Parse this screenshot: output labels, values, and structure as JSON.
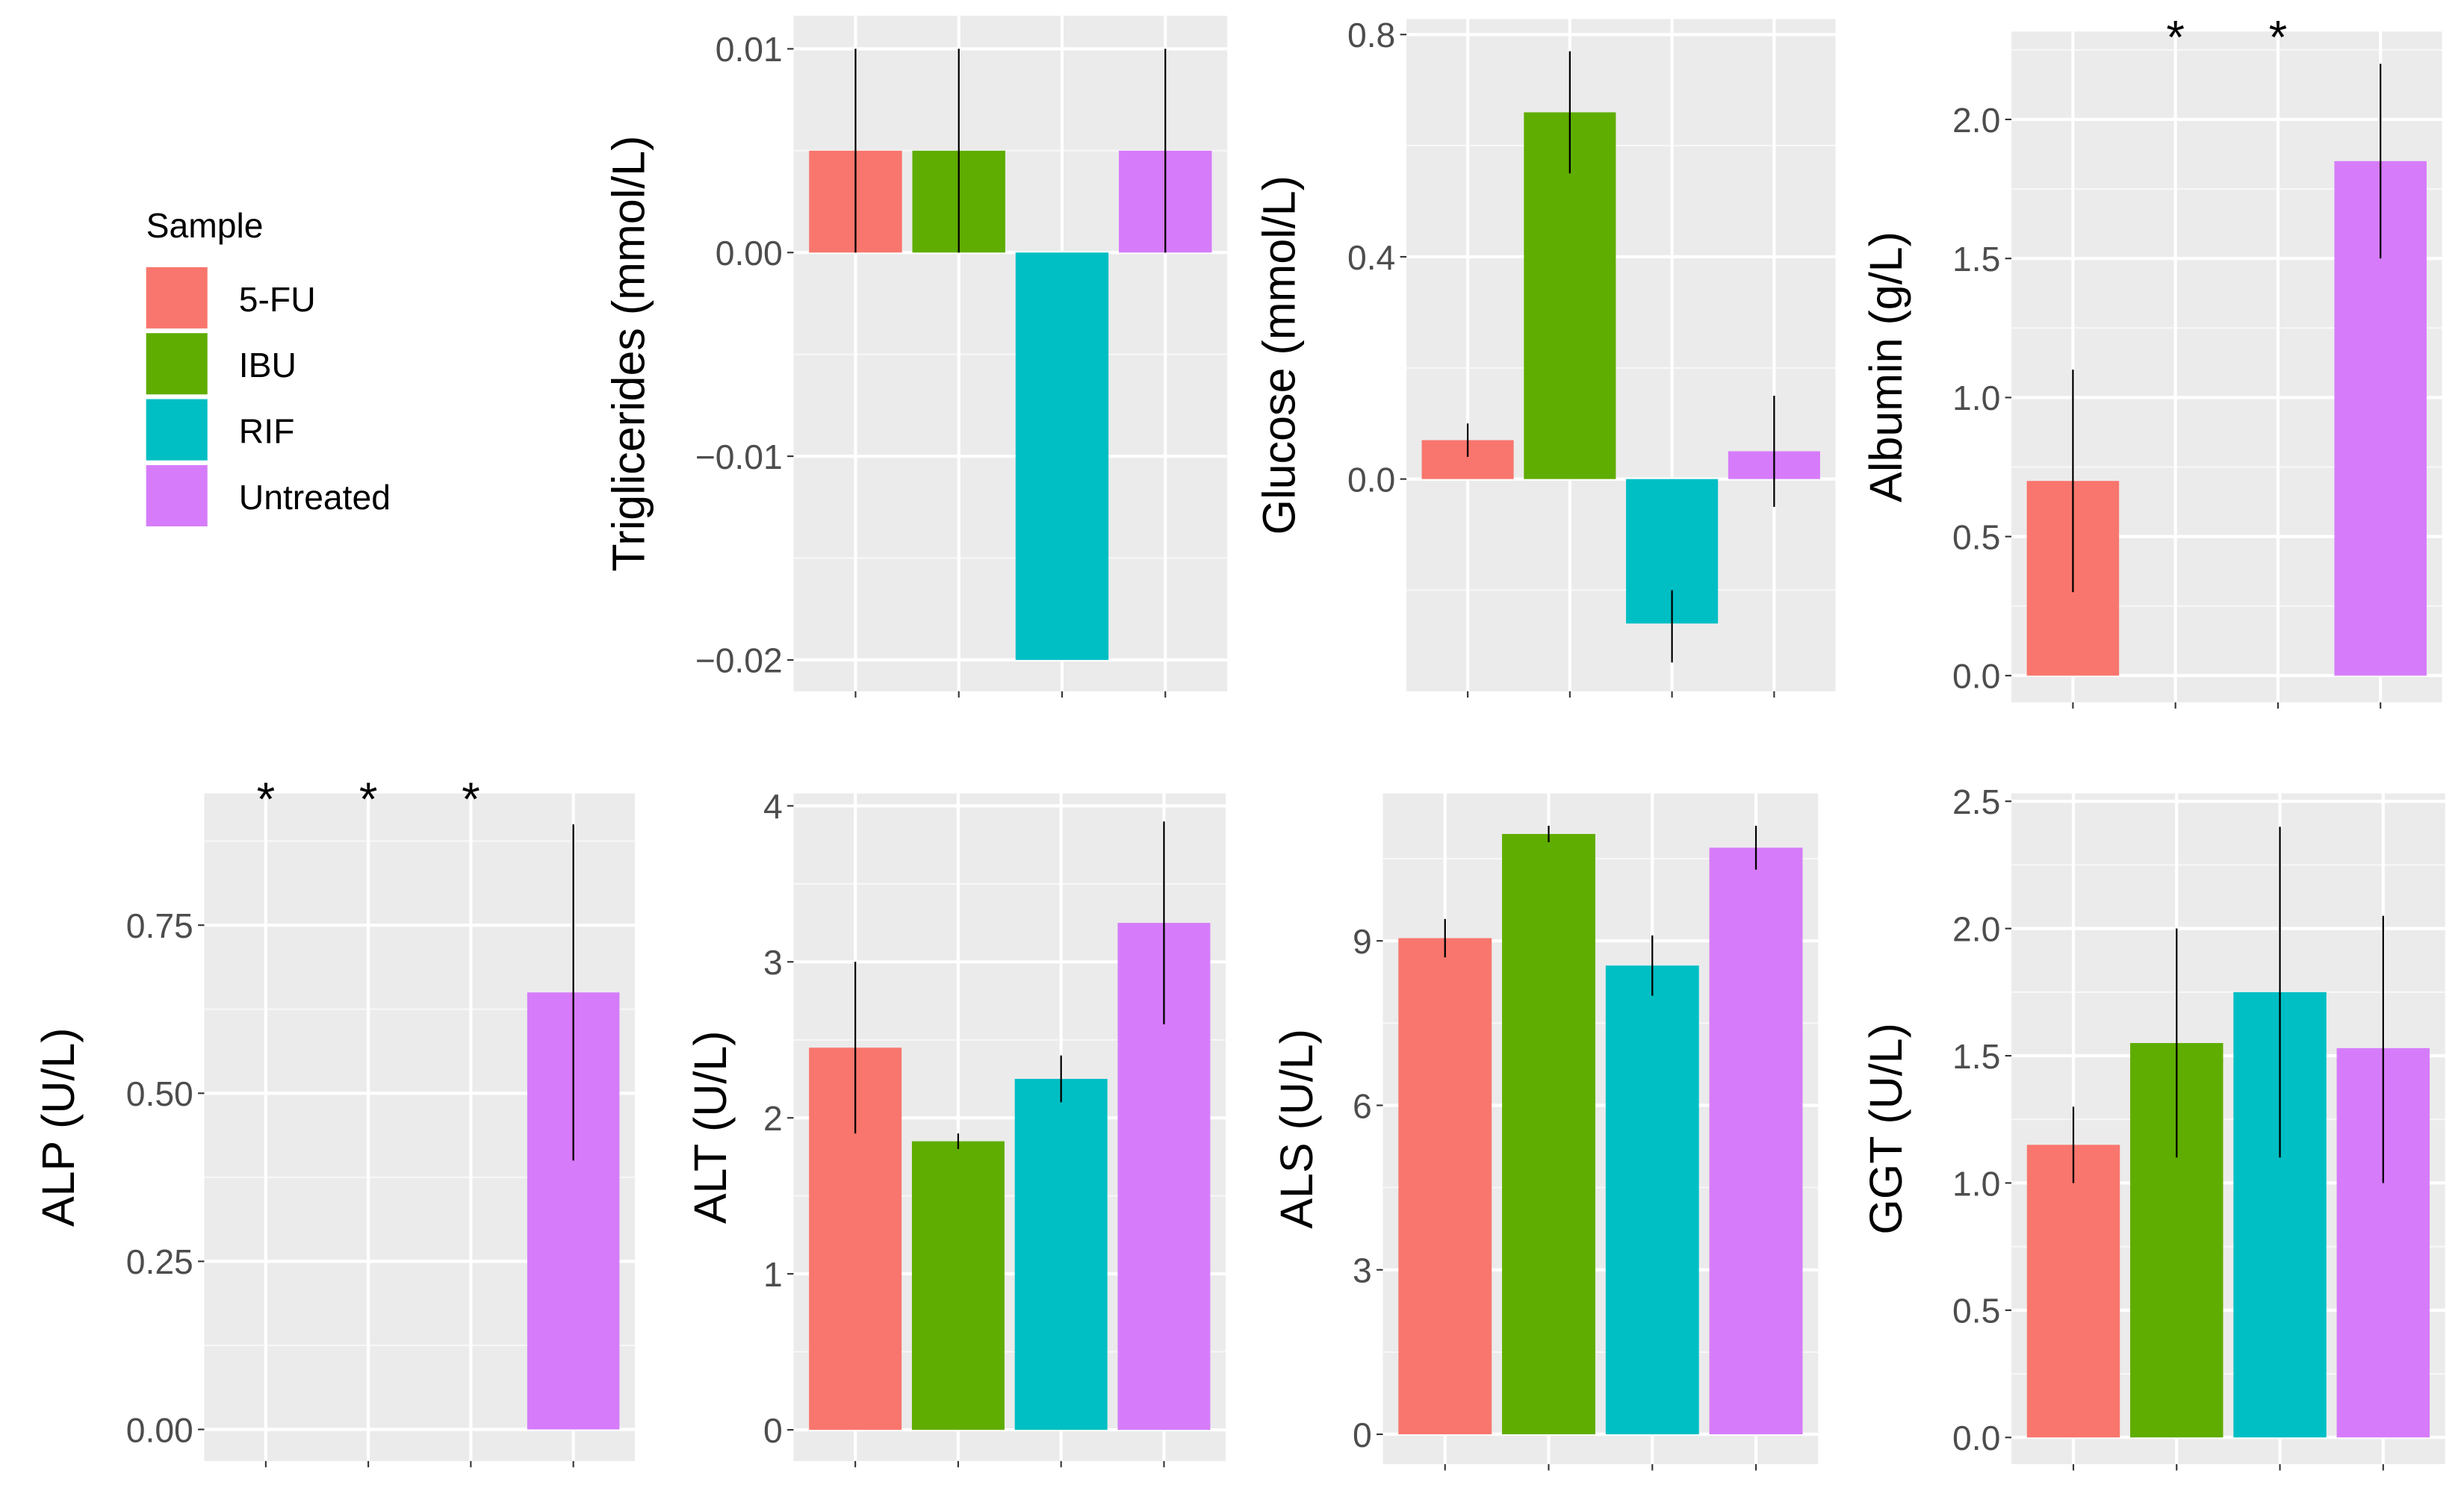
{
  "legend": {
    "title": "Sample",
    "position": "left",
    "entries": [
      "5-FU",
      "IBU",
      "RIF",
      "Untreated"
    ],
    "colors": [
      "#F8766D",
      "#5FAD00",
      "#00BFC4",
      "#D67CFA"
    ]
  },
  "chart_data": [
    {
      "type": "bar",
      "ylabel": "Triglicerides (mmol/L)",
      "categories": [
        "5-FU",
        "IBU",
        "RIF",
        "Untreated"
      ],
      "values": [
        0.005,
        0.005,
        -0.02,
        0.005
      ],
      "errors": [
        [
          0.0,
          0.01
        ],
        [
          0.0,
          0.01
        ],
        null,
        [
          0.0,
          0.01
        ]
      ],
      "ylim": [
        -0.02154,
        0.01162
      ],
      "yticks": [
        -0.02,
        -0.01,
        0.0,
        0.01
      ],
      "ytick_labels": [
        "−0.02",
        "−0.01",
        "0.00",
        "0.01"
      ],
      "annotations": []
    },
    {
      "type": "bar",
      "ylabel": "Glucose (mmol/L)",
      "categories": [
        "5-FU",
        "IBU",
        "RIF",
        "Untreated"
      ],
      "values": [
        0.07,
        0.66,
        -0.26,
        0.05
      ],
      "errors": [
        [
          0.04,
          0.1
        ],
        [
          0.55,
          0.77
        ],
        [
          -0.33,
          -0.2
        ],
        [
          -0.05,
          0.15
        ]
      ],
      "ylim": [
        -0.382,
        0.828
      ],
      "yticks": [
        0.0,
        0.4,
        0.8
      ],
      "ytick_labels": [
        "0.0",
        "0.4",
        "0.8"
      ],
      "annotations": []
    },
    {
      "type": "bar",
      "ylabel": "Albumin (g/L)",
      "categories": [
        "5-FU",
        "IBU",
        "RIF",
        "Untreated"
      ],
      "values": [
        0.7,
        null,
        null,
        1.85
      ],
      "errors": [
        [
          0.3,
          1.1
        ],
        null,
        null,
        [
          1.5,
          2.2
        ]
      ],
      "ylim": [
        -0.096,
        2.316
      ],
      "yticks": [
        0.0,
        0.5,
        1.0,
        1.5,
        2.0
      ],
      "ytick_labels": [
        "0.0",
        "0.5",
        "1.0",
        "1.5",
        "2.0"
      ],
      "annotations": [
        {
          "category": "IBU",
          "label": "*"
        },
        {
          "category": "RIF",
          "label": "*"
        }
      ]
    },
    {
      "type": "bar",
      "ylabel": "ALP (U/L)",
      "categories": [
        "5-FU",
        "IBU",
        "RIF",
        "Untreated"
      ],
      "values": [
        null,
        null,
        null,
        0.65
      ],
      "errors": [
        null,
        null,
        null,
        [
          0.4,
          0.9
        ]
      ],
      "ylim": [
        -0.047,
        0.946
      ],
      "yticks": [
        0.0,
        0.25,
        0.5,
        0.75
      ],
      "ytick_labels": [
        "0.00",
        "0.25",
        "0.50",
        "0.75"
      ],
      "annotations": [
        {
          "category": "5-FU",
          "label": "*"
        },
        {
          "category": "IBU",
          "label": "*"
        },
        {
          "category": "RIF",
          "label": "*"
        }
      ]
    },
    {
      "type": "bar",
      "ylabel": "ALT (U/L)",
      "categories": [
        "5-FU",
        "IBU",
        "RIF",
        "Untreated"
      ],
      "values": [
        2.45,
        1.85,
        2.25,
        3.25
      ],
      "errors": [
        [
          1.9,
          3.0
        ],
        [
          1.8,
          1.9
        ],
        [
          2.1,
          2.4
        ],
        [
          2.6,
          3.9
        ]
      ],
      "ylim": [
        -0.2,
        4.08
      ],
      "yticks": [
        0,
        1,
        2,
        3,
        4
      ],
      "ytick_labels": [
        "0",
        "1",
        "2",
        "3",
        "4"
      ],
      "annotations": []
    },
    {
      "type": "bar",
      "ylabel": "ALS (U/L)",
      "categories": [
        "5-FU",
        "IBU",
        "RIF",
        "Untreated"
      ],
      "values": [
        9.05,
        10.95,
        8.55,
        10.7
      ],
      "errors": [
        [
          8.7,
          9.4
        ],
        [
          10.8,
          11.1
        ],
        [
          8.0,
          9.1
        ],
        [
          10.3,
          11.1
        ]
      ],
      "ylim": [
        -0.545,
        11.69
      ],
      "yticks": [
        0,
        3,
        6,
        9
      ],
      "ytick_labels": [
        "0",
        "3",
        "6",
        "9"
      ],
      "annotations": []
    },
    {
      "type": "bar",
      "ylabel": "GGT (U/L)",
      "categories": [
        "5-FU",
        "IBU",
        "RIF",
        "Untreated"
      ],
      "values": [
        1.15,
        1.55,
        1.75,
        1.53
      ],
      "errors": [
        [
          1.0,
          1.3
        ],
        [
          1.1,
          2.0
        ],
        [
          1.1,
          2.4
        ],
        [
          1.0,
          2.05
        ]
      ],
      "ylim": [
        -0.105,
        2.531
      ],
      "yticks": [
        0.0,
        0.5,
        1.0,
        1.5,
        2.0,
        2.5
      ],
      "ytick_labels": [
        "0.0",
        "0.5",
        "1.0",
        "1.5",
        "2.0",
        "2.5"
      ],
      "annotations": []
    }
  ]
}
